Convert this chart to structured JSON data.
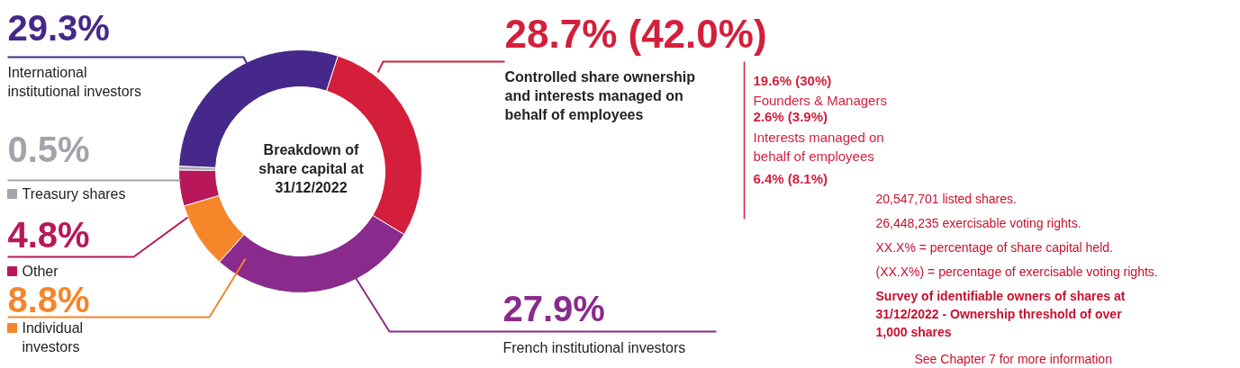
{
  "chart_data": {
    "type": "donut",
    "title": "Breakdown of share capital at 31/12/2022",
    "categories": [
      "Controlled share ownership and interests managed on behalf of employees",
      "French institutional investors",
      "Individual investors",
      "Other",
      "Treasury shares",
      "International institutional investors"
    ],
    "values": [
      28.7,
      27.9,
      8.8,
      4.8,
      0.5,
      29.3
    ],
    "colors": [
      "#d31f3b",
      "#8a2a8d",
      "#f5862a",
      "#b8185a",
      "#a3a3ab",
      "#46288a"
    ],
    "legend": "left",
    "value_labels": [
      "28.7% (42.0%)",
      "27.9%",
      "8.8%",
      "4.8%",
      "0.5%",
      "29.3%"
    ],
    "annotations": [
      "19.6% (30%)",
      "Founders & Managers",
      "2.6% (3.9%)",
      "Interests managed on behalf of employees",
      "6.4% (8.1%)",
      "20,547,701 listed shares.",
      "26,448,235 exercisable voting rights.",
      "XX.X% = percentage of share capital held.",
      "(XX.X%) = percentage of exercisable voting rights.",
      "Survey of identifiable owners of shares at 31/12/2022 - Ownership threshold of over 1,000 shares",
      "See Chapter 7 for more information"
    ]
  }
}
